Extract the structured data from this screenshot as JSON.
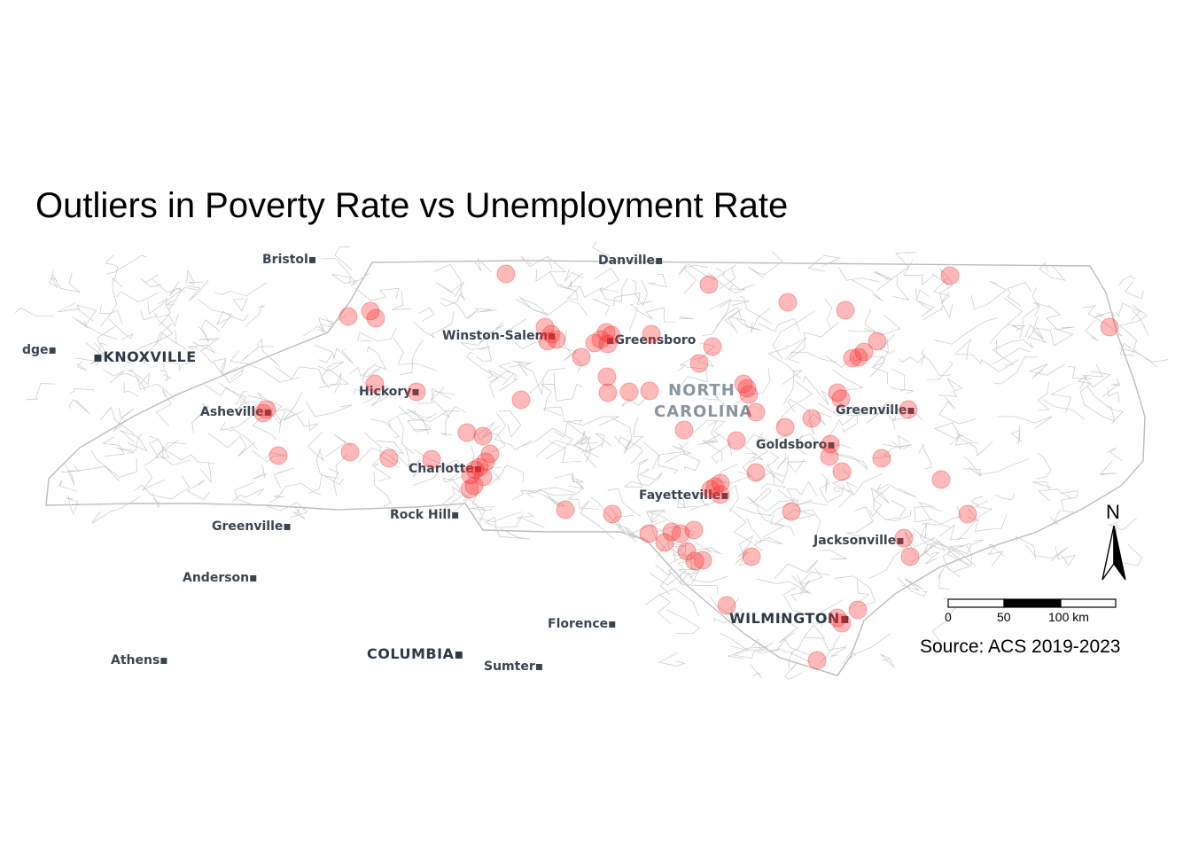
{
  "title": "Outliers in Poverty Rate vs Unemployment Rate",
  "source": "Source: ACS 2019-2023",
  "state_label": [
    "NORTH",
    "CAROLINA"
  ],
  "cities": [
    {
      "name": "Bristol",
      "big": false
    },
    {
      "name": "Danville",
      "big": false
    },
    {
      "name": "dge",
      "big": false
    },
    {
      "name": "KNOXVILLE",
      "big": true
    },
    {
      "name": "Winston-Salem",
      "big": false
    },
    {
      "name": "Greensboro",
      "big": false
    },
    {
      "name": "Hickory",
      "big": false
    },
    {
      "name": "Asheville",
      "big": false
    },
    {
      "name": "Greenville",
      "big": false
    },
    {
      "name": "Goldsboro",
      "big": false
    },
    {
      "name": "Charlotte",
      "big": false
    },
    {
      "name": "Fayetteville",
      "big": false
    },
    {
      "name": "Rock Hill",
      "big": false
    },
    {
      "name": "Greenville",
      "big": false
    },
    {
      "name": "Jacksonville",
      "big": false
    },
    {
      "name": "Anderson",
      "big": false
    },
    {
      "name": "WILMINGTON",
      "big": true
    },
    {
      "name": "Florence",
      "big": false
    },
    {
      "name": "Athens",
      "big": false
    },
    {
      "name": "COLUMBIA",
      "big": true
    },
    {
      "name": "Sumter",
      "big": false
    }
  ],
  "north_arrow": "N",
  "scale_bar": {
    "labels": [
      "0",
      "50",
      "100 km"
    ]
  },
  "colors": {
    "outlier": "#ff2a2a",
    "tract_lines": "#c9c9c9",
    "basemap_text": "#3a4552"
  }
}
